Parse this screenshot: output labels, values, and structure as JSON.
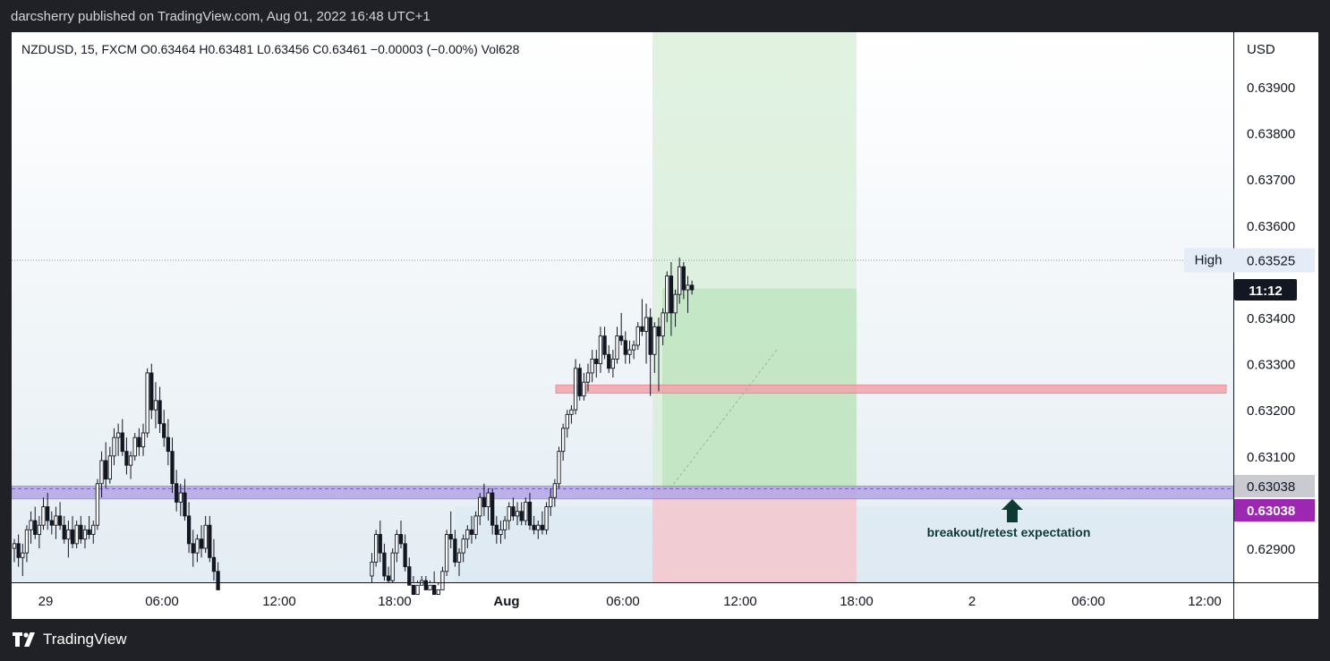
{
  "header": {
    "published": "darcsherry published on TradingView.com, Aug 01, 2022 16:48 UTC+1"
  },
  "legend": {
    "text": "NZDUSD, 15, FXCM  O0.63464  H0.63481  L0.63456  C0.63461  −0.00003 (−0.00%)  Vol628"
  },
  "footer": {
    "brand": "TradingView"
  },
  "colors": {
    "candle": "#131722",
    "profit_zone": "#d7eed7",
    "loss_zone": "#f4c7cd",
    "resistance": "#f2a4ad",
    "support": "#b4a6e6",
    "annotation": "#0d3b34",
    "last_price": "#9c27b0"
  },
  "chart_data": {
    "type": "candlestick",
    "symbol": "NZDUSD",
    "interval": "15",
    "source": "FXCM",
    "currency_label": "USD",
    "y_ticks": [
      "0.63900",
      "0.63800",
      "0.63700",
      "0.63600",
      "0.63400",
      "0.63300",
      "0.63200",
      "0.63100",
      "0.62900"
    ],
    "x_ticks": [
      "29",
      "06:00",
      "12:00",
      "18:00",
      "Aug",
      "06:00",
      "12:00",
      "18:00",
      "2",
      "06:00",
      "12:00"
    ],
    "high_line": {
      "label": "High",
      "price": "0.63525"
    },
    "countdown": "11:12",
    "price_labels": [
      {
        "value": "0.63038",
        "style": "gray"
      },
      {
        "value": "0.63038",
        "style": "last"
      }
    ],
    "annotation": "breakout/retest expectation",
    "resistance_zone": [
      0.63236,
      0.63254
    ],
    "support_zone": [
      0.63007,
      0.63035
    ],
    "long_position": {
      "entry": 0.6303,
      "target": 0.63463,
      "stop": 0.6282
    },
    "ylim": [
      0.62815,
      0.63985
    ],
    "candles": [
      [
        0.629,
        0.6292,
        0.6287,
        0.6291
      ],
      [
        0.6291,
        0.6293,
        0.6286,
        0.6288
      ],
      [
        0.6288,
        0.6291,
        0.6284,
        0.6289
      ],
      [
        0.6289,
        0.6295,
        0.6287,
        0.6294
      ],
      [
        0.6294,
        0.6298,
        0.6291,
        0.6296
      ],
      [
        0.6296,
        0.6299,
        0.6292,
        0.6293
      ],
      [
        0.6293,
        0.6297,
        0.629,
        0.6295
      ],
      [
        0.6295,
        0.6301,
        0.6294,
        0.6299
      ],
      [
        0.6299,
        0.6302,
        0.6294,
        0.6296
      ],
      [
        0.6296,
        0.6298,
        0.6293,
        0.6295
      ],
      [
        0.6295,
        0.6299,
        0.6292,
        0.6297
      ],
      [
        0.6297,
        0.63,
        0.6294,
        0.6295
      ],
      [
        0.6295,
        0.6297,
        0.6291,
        0.6292
      ],
      [
        0.6292,
        0.6296,
        0.6288,
        0.6294
      ],
      [
        0.6294,
        0.6297,
        0.629,
        0.6291
      ],
      [
        0.6291,
        0.6296,
        0.629,
        0.6295
      ],
      [
        0.6295,
        0.6297,
        0.6291,
        0.6292
      ],
      [
        0.6292,
        0.6295,
        0.629,
        0.6294
      ],
      [
        0.6294,
        0.6297,
        0.6292,
        0.6293
      ],
      [
        0.6293,
        0.6296,
        0.6291,
        0.6295
      ],
      [
        0.6295,
        0.6305,
        0.6294,
        0.6304
      ],
      [
        0.6304,
        0.6311,
        0.6301,
        0.6309
      ],
      [
        0.6309,
        0.6313,
        0.6303,
        0.6305
      ],
      [
        0.6305,
        0.6312,
        0.6304,
        0.631
      ],
      [
        0.631,
        0.6316,
        0.6308,
        0.6314
      ],
      [
        0.6314,
        0.6317,
        0.631,
        0.6315
      ],
      [
        0.6315,
        0.6318,
        0.631,
        0.6311
      ],
      [
        0.6311,
        0.6314,
        0.6306,
        0.6308
      ],
      [
        0.6308,
        0.6311,
        0.6305,
        0.631
      ],
      [
        0.631,
        0.6315,
        0.6309,
        0.6314
      ],
      [
        0.6314,
        0.6316,
        0.631,
        0.6312
      ],
      [
        0.6312,
        0.6317,
        0.631,
        0.6315
      ],
      [
        0.6315,
        0.6329,
        0.6314,
        0.6328
      ],
      [
        0.6328,
        0.633,
        0.6318,
        0.632
      ],
      [
        0.632,
        0.6326,
        0.6316,
        0.6322
      ],
      [
        0.6322,
        0.6325,
        0.6315,
        0.6317
      ],
      [
        0.6317,
        0.632,
        0.6312,
        0.6314
      ],
      [
        0.6314,
        0.6318,
        0.6308,
        0.6311
      ],
      [
        0.6311,
        0.6314,
        0.6302,
        0.6304
      ],
      [
        0.6304,
        0.6307,
        0.6298,
        0.63
      ],
      [
        0.63,
        0.6304,
        0.6297,
        0.6302
      ],
      [
        0.6302,
        0.6305,
        0.6296,
        0.6297
      ],
      [
        0.6297,
        0.63,
        0.6289,
        0.6291
      ],
      [
        0.6291,
        0.6294,
        0.6286,
        0.6289
      ],
      [
        0.6289,
        0.6293,
        0.6287,
        0.6292
      ],
      [
        0.6292,
        0.6295,
        0.6288,
        0.629
      ],
      [
        0.629,
        0.6297,
        0.6289,
        0.6295
      ],
      [
        0.6295,
        0.6297,
        0.6287,
        0.6288
      ],
      [
        0.6288,
        0.6292,
        0.6283,
        0.6285
      ],
      [
        0.6285,
        0.6287,
        0.628,
        0.6281
      ],
      null,
      null,
      null,
      null,
      null,
      null,
      null,
      null,
      null,
      null,
      null,
      null,
      null,
      null,
      null,
      null,
      null,
      null,
      null,
      null,
      null,
      null,
      null,
      null,
      null,
      null,
      null,
      null,
      null,
      null,
      null,
      null,
      null,
      null,
      null,
      null,
      [
        0.6284,
        0.6289,
        0.6282,
        0.6287
      ],
      [
        0.6287,
        0.6294,
        0.6286,
        0.6293
      ],
      [
        0.6293,
        0.6296,
        0.6287,
        0.6289
      ],
      [
        0.6289,
        0.6291,
        0.6283,
        0.6284
      ],
      [
        0.6284,
        0.6286,
        0.6281,
        0.6283
      ],
      [
        0.6283,
        0.629,
        0.6282,
        0.6289
      ],
      [
        0.6289,
        0.6294,
        0.6287,
        0.6293
      ],
      [
        0.6293,
        0.6296,
        0.629,
        0.6291
      ],
      [
        0.6291,
        0.6293,
        0.6285,
        0.6286
      ],
      [
        0.6286,
        0.6288,
        0.6281,
        0.6282
      ],
      [
        0.6282,
        0.6284,
        0.6279,
        0.628
      ],
      [
        0.628,
        0.6283,
        0.6278,
        0.6282
      ],
      [
        0.6282,
        0.6284,
        0.6279,
        0.6283
      ],
      [
        0.6283,
        0.6284,
        0.628,
        0.6281
      ],
      [
        0.6281,
        0.6283,
        0.6278,
        0.6282
      ],
      [
        0.6282,
        0.6285,
        0.6279,
        0.628
      ],
      [
        0.628,
        0.6282,
        0.6278,
        0.6281
      ],
      [
        0.6281,
        0.6286,
        0.628,
        0.6285
      ],
      [
        0.6285,
        0.6294,
        0.6284,
        0.6293
      ],
      [
        0.6293,
        0.6298,
        0.629,
        0.6292
      ],
      [
        0.6292,
        0.6294,
        0.6286,
        0.6287
      ],
      [
        0.6287,
        0.629,
        0.6284,
        0.6289
      ],
      [
        0.6289,
        0.6293,
        0.6287,
        0.6292
      ],
      [
        0.6292,
        0.6295,
        0.629,
        0.6294
      ],
      [
        0.6294,
        0.6297,
        0.6291,
        0.6293
      ],
      [
        0.6293,
        0.6298,
        0.6292,
        0.6297
      ],
      [
        0.6297,
        0.6302,
        0.6295,
        0.6301
      ],
      [
        0.6301,
        0.6304,
        0.6297,
        0.6299
      ],
      [
        0.6299,
        0.6303,
        0.6296,
        0.6302
      ],
      [
        0.6302,
        0.6303,
        0.6293,
        0.6295
      ],
      [
        0.6295,
        0.6297,
        0.6291,
        0.6293
      ],
      [
        0.6293,
        0.6296,
        0.6291,
        0.6294
      ],
      [
        0.6294,
        0.6297,
        0.6292,
        0.6296
      ],
      [
        0.6296,
        0.63,
        0.6294,
        0.6299
      ],
      [
        0.6299,
        0.6301,
        0.6296,
        0.6297
      ],
      [
        0.6297,
        0.63,
        0.6295,
        0.6298
      ],
      [
        0.6298,
        0.63,
        0.6295,
        0.6296
      ],
      [
        0.6296,
        0.6301,
        0.6295,
        0.63
      ],
      [
        0.63,
        0.6302,
        0.6294,
        0.6295
      ],
      [
        0.6295,
        0.6297,
        0.6293,
        0.6294
      ],
      [
        0.6294,
        0.6296,
        0.6292,
        0.6295
      ],
      [
        0.6295,
        0.6298,
        0.6293,
        0.6294
      ],
      [
        0.6294,
        0.63,
        0.6293,
        0.6299
      ],
      [
        0.6299,
        0.6303,
        0.6297,
        0.6301
      ],
      [
        0.6301,
        0.6305,
        0.6299,
        0.6304
      ],
      [
        0.6304,
        0.6312,
        0.6303,
        0.6311
      ],
      [
        0.6311,
        0.6317,
        0.6309,
        0.6316
      ],
      [
        0.6316,
        0.632,
        0.6314,
        0.6319
      ],
      [
        0.6319,
        0.6321,
        0.6317,
        0.632
      ],
      [
        0.632,
        0.6331,
        0.6319,
        0.6329
      ],
      [
        0.6329,
        0.633,
        0.6322,
        0.6323
      ],
      [
        0.6323,
        0.6328,
        0.6322,
        0.6326
      ],
      [
        0.6326,
        0.633,
        0.6324,
        0.6328
      ],
      [
        0.6328,
        0.6333,
        0.6326,
        0.6331
      ],
      [
        0.6331,
        0.6333,
        0.6327,
        0.633
      ],
      [
        0.633,
        0.6338,
        0.6328,
        0.6336
      ],
      [
        0.6336,
        0.6338,
        0.6331,
        0.6332
      ],
      [
        0.6332,
        0.6334,
        0.6328,
        0.6329
      ],
      [
        0.6329,
        0.6333,
        0.6327,
        0.6331
      ],
      [
        0.6331,
        0.6338,
        0.633,
        0.6336
      ],
      [
        0.6336,
        0.6341,
        0.6334,
        0.6335
      ],
      [
        0.6335,
        0.6337,
        0.633,
        0.6332
      ],
      [
        0.6332,
        0.6335,
        0.633,
        0.6333
      ],
      [
        0.6333,
        0.6335,
        0.6331,
        0.6334
      ],
      [
        0.6334,
        0.6339,
        0.6333,
        0.6338
      ],
      [
        0.6338,
        0.6344,
        0.6336,
        0.6337
      ],
      [
        0.6337,
        0.6343,
        0.633,
        0.634
      ],
      [
        0.634,
        0.6342,
        0.6323,
        0.6332
      ],
      [
        0.6332,
        0.6339,
        0.6328,
        0.6338
      ],
      [
        0.6338,
        0.634,
        0.6324,
        0.6336
      ],
      [
        0.6336,
        0.6342,
        0.6334,
        0.6341
      ],
      [
        0.6341,
        0.635,
        0.6339,
        0.6349
      ],
      [
        0.6349,
        0.6352,
        0.6336,
        0.6341
      ],
      [
        0.6341,
        0.6346,
        0.6338,
        0.6345
      ],
      [
        0.6345,
        0.6353,
        0.6343,
        0.6351
      ],
      [
        0.6351,
        0.6352,
        0.6344,
        0.6346
      ],
      [
        0.6346,
        0.6349,
        0.6341,
        0.6347
      ],
      [
        0.6347,
        0.6348,
        0.6345,
        0.6346
      ]
    ]
  }
}
